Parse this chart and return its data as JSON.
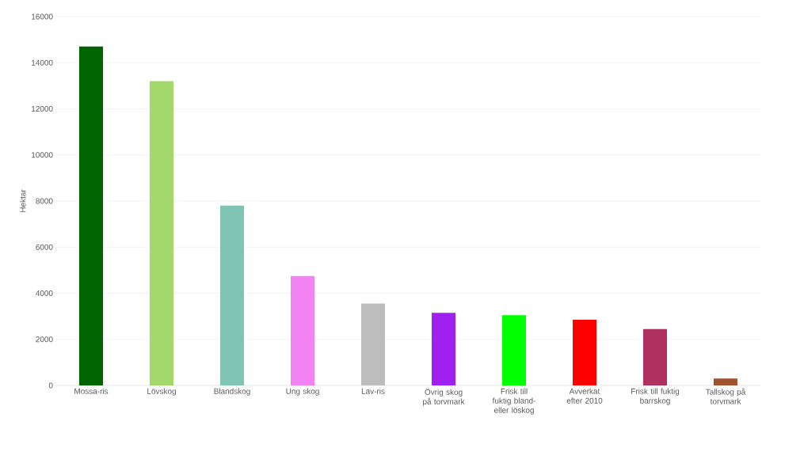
{
  "chart_data": {
    "type": "bar",
    "ylabel": "Hektar",
    "categories": [
      "Mossa-ris",
      "Lövskog",
      "Blandskog",
      "Ung skog",
      "Lav-ris",
      "Övrig skog på torvmark",
      "Frisk till fuktig bland- eller löskog",
      "Avverkat efter 2010",
      "Frisk till fuktig barrskog",
      "Tallskog på torvmark"
    ],
    "values": [
      14700,
      13200,
      7800,
      4750,
      3550,
      3150,
      3050,
      2850,
      2450,
      300
    ],
    "colors": [
      "#006400",
      "#a2d96a",
      "#80c4b4",
      "#f383f3",
      "#bdbdbd",
      "#a020f0",
      "#00ff00",
      "#ff0000",
      "#b03060",
      "#a0522d"
    ],
    "ylim": [
      0,
      16000
    ],
    "yticks": [
      0,
      2000,
      4000,
      6000,
      8000,
      10000,
      12000,
      14000,
      16000
    ],
    "grid": "y"
  }
}
